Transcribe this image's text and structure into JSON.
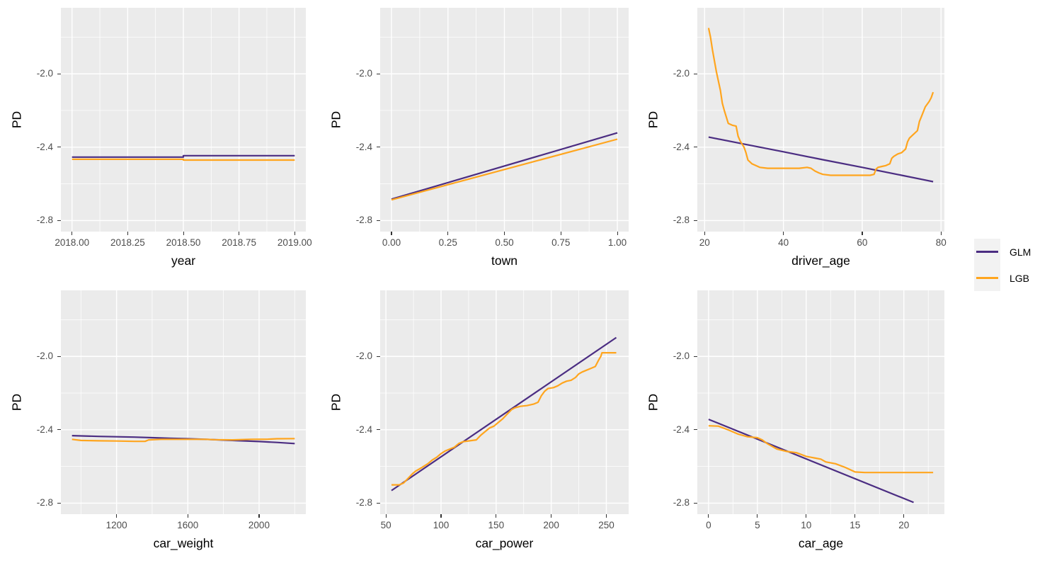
{
  "colors": {
    "glm": "#4B2D82",
    "lgb": "#FFA51E",
    "panel_background": "#EBEBEB",
    "grid_major": "#FFFFFF",
    "grid_minor": "#FFFFFF",
    "tick_mark": "#333333",
    "tick_label": "#4D4D4D",
    "axis_title": "#000000",
    "legend_key_background": "#F2F2F2",
    "figure_background": "#FFFFFF"
  },
  "y_axis": {
    "label": "PD",
    "ticks": [
      -2.0,
      -2.4,
      -2.8
    ],
    "tick_labels": [
      "-2.0",
      "-2.4",
      "-2.8"
    ],
    "minor_ticks": [
      -1.8,
      -2.2,
      -2.6
    ],
    "domain": [
      -2.86,
      -1.64
    ]
  },
  "legend": {
    "position": "right",
    "items": [
      {
        "label": "GLM",
        "color": "#4B2D82"
      },
      {
        "label": "LGB",
        "color": "#FFA51E"
      }
    ]
  },
  "chart_data": [
    {
      "type": "line",
      "id": "year",
      "xlabel": "year",
      "ylabel": "PD",
      "x_domain": [
        2017.95,
        2019.05
      ],
      "x_ticks": [
        2018.0,
        2018.25,
        2018.5,
        2018.75,
        2019.0
      ],
      "x_tick_labels": [
        "2018.00",
        "2018.25",
        "2018.50",
        "2018.75",
        "2019.00"
      ],
      "x_minor_ticks": [
        2018.125,
        2018.375,
        2018.625,
        2018.875
      ],
      "series": [
        {
          "name": "GLM",
          "color": "#4B2D82",
          "points": [
            [
              2018.0,
              -2.454
            ],
            [
              2018.5,
              -2.454
            ],
            [
              2018.5,
              -2.446
            ],
            [
              2019.0,
              -2.446
            ]
          ]
        },
        {
          "name": "LGB",
          "color": "#FFA51E",
          "points": [
            [
              2018.0,
              -2.466
            ],
            [
              2018.5,
              -2.466
            ],
            [
              2018.5,
              -2.47
            ],
            [
              2019.0,
              -2.47
            ]
          ]
        }
      ]
    },
    {
      "type": "line",
      "id": "town",
      "xlabel": "town",
      "ylabel": "PD",
      "x_domain": [
        -0.05,
        1.05
      ],
      "x_ticks": [
        0.0,
        0.25,
        0.5,
        0.75,
        1.0
      ],
      "x_tick_labels": [
        "0.00",
        "0.25",
        "0.50",
        "0.75",
        "1.00"
      ],
      "x_minor_ticks": [
        0.125,
        0.375,
        0.625,
        0.875
      ],
      "series": [
        {
          "name": "GLM",
          "color": "#4B2D82",
          "points": [
            [
              0,
              -2.683
            ],
            [
              1,
              -2.322
            ]
          ]
        },
        {
          "name": "LGB",
          "color": "#FFA51E",
          "points": [
            [
              0,
              -2.687
            ],
            [
              1,
              -2.356
            ]
          ]
        }
      ]
    },
    {
      "type": "line",
      "id": "driver_age",
      "xlabel": "driver_age",
      "ylabel": "PD",
      "x_domain": [
        18.15,
        80.85
      ],
      "x_ticks": [
        20,
        40,
        60,
        80
      ],
      "x_tick_labels": [
        "20",
        "40",
        "60",
        "80"
      ],
      "x_minor_ticks": [
        30,
        50,
        70
      ],
      "series": [
        {
          "name": "GLM",
          "color": "#4B2D82",
          "points": [
            [
              21,
              -2.345
            ],
            [
              30,
              -2.383
            ],
            [
              40,
              -2.425
            ],
            [
              50,
              -2.468
            ],
            [
              60,
              -2.51
            ],
            [
              70,
              -2.553
            ],
            [
              78,
              -2.588
            ]
          ]
        },
        {
          "name": "LGB",
          "color": "#FFA51E",
          "points": [
            [
              21,
              -1.75
            ],
            [
              21.5,
              -1.8
            ],
            [
              22,
              -1.87
            ],
            [
              23,
              -1.99
            ],
            [
              24,
              -2.09
            ],
            [
              24.5,
              -2.16
            ],
            [
              25,
              -2.2
            ],
            [
              26,
              -2.27
            ],
            [
              27,
              -2.28
            ],
            [
              28,
              -2.285
            ],
            [
              28.5,
              -2.34
            ],
            [
              29,
              -2.365
            ],
            [
              30,
              -2.4
            ],
            [
              30.5,
              -2.43
            ],
            [
              31,
              -2.47
            ],
            [
              32,
              -2.49
            ],
            [
              33,
              -2.5
            ],
            [
              34,
              -2.51
            ],
            [
              36,
              -2.515
            ],
            [
              44,
              -2.515
            ],
            [
              46,
              -2.51
            ],
            [
              47,
              -2.515
            ],
            [
              48,
              -2.53
            ],
            [
              49,
              -2.54
            ],
            [
              50,
              -2.548
            ],
            [
              52,
              -2.553
            ],
            [
              62,
              -2.553
            ],
            [
              63,
              -2.548
            ],
            [
              63.5,
              -2.52
            ],
            [
              64,
              -2.51
            ],
            [
              65,
              -2.505
            ],
            [
              66,
              -2.5
            ],
            [
              67,
              -2.49
            ],
            [
              67.5,
              -2.46
            ],
            [
              68,
              -2.45
            ],
            [
              69,
              -2.437
            ],
            [
              70,
              -2.43
            ],
            [
              71,
              -2.41
            ],
            [
              71.5,
              -2.37
            ],
            [
              72,
              -2.35
            ],
            [
              73,
              -2.33
            ],
            [
              74,
              -2.31
            ],
            [
              74.5,
              -2.26
            ],
            [
              75,
              -2.235
            ],
            [
              76,
              -2.18
            ],
            [
              77,
              -2.15
            ],
            [
              77.5,
              -2.13
            ],
            [
              78,
              -2.1
            ]
          ]
        }
      ]
    },
    {
      "type": "line",
      "id": "car_weight",
      "xlabel": "car_weight",
      "ylabel": "PD",
      "x_domain": [
        887.5,
        2262.5
      ],
      "x_ticks": [
        1200,
        1600,
        2000
      ],
      "x_tick_labels": [
        "1200",
        "1600",
        "2000"
      ],
      "x_minor_ticks": [
        1000,
        1400,
        1800,
        2200
      ],
      "series": [
        {
          "name": "GLM",
          "color": "#4B2D82",
          "points": [
            [
              950,
              -2.432
            ],
            [
              1100,
              -2.436
            ],
            [
              1200,
              -2.438
            ],
            [
              1300,
              -2.44
            ],
            [
              1400,
              -2.443
            ],
            [
              1500,
              -2.446
            ],
            [
              1600,
              -2.449
            ],
            [
              1700,
              -2.452
            ],
            [
              1800,
              -2.456
            ],
            [
              1900,
              -2.46
            ],
            [
              2000,
              -2.464
            ],
            [
              2100,
              -2.469
            ],
            [
              2200,
              -2.475
            ]
          ]
        },
        {
          "name": "LGB",
          "color": "#FFA51E",
          "points": [
            [
              950,
              -2.452
            ],
            [
              1000,
              -2.458
            ],
            [
              1100,
              -2.46
            ],
            [
              1200,
              -2.461
            ],
            [
              1300,
              -2.463
            ],
            [
              1360,
              -2.463
            ],
            [
              1380,
              -2.455
            ],
            [
              1450,
              -2.452
            ],
            [
              1700,
              -2.452
            ],
            [
              1750,
              -2.454
            ],
            [
              1850,
              -2.455
            ],
            [
              1950,
              -2.452
            ],
            [
              2050,
              -2.451
            ],
            [
              2100,
              -2.449
            ],
            [
              2200,
              -2.448
            ]
          ]
        }
      ]
    },
    {
      "type": "line",
      "id": "car_power",
      "xlabel": "car_power",
      "ylabel": "PD",
      "x_domain": [
        44.75,
        270.25
      ],
      "x_ticks": [
        50,
        100,
        150,
        200,
        250
      ],
      "x_tick_labels": [
        "50",
        "100",
        "150",
        "200",
        "250"
      ],
      "x_minor_ticks": [
        75,
        125,
        175,
        225
      ],
      "series": [
        {
          "name": "GLM",
          "color": "#4B2D82",
          "points": [
            [
              55,
              -2.731
            ],
            [
              259,
              -1.897
            ]
          ]
        },
        {
          "name": "LGB",
          "color": "#FFA51E",
          "points": [
            [
              55,
              -2.7
            ],
            [
              62,
              -2.7
            ],
            [
              66,
              -2.69
            ],
            [
              70,
              -2.665
            ],
            [
              74,
              -2.64
            ],
            [
              77,
              -2.625
            ],
            [
              80,
              -2.615
            ],
            [
              84,
              -2.6
            ],
            [
              88,
              -2.585
            ],
            [
              92,
              -2.565
            ],
            [
              96,
              -2.55
            ],
            [
              100,
              -2.53
            ],
            [
              104,
              -2.515
            ],
            [
              108,
              -2.505
            ],
            [
              112,
              -2.495
            ],
            [
              116,
              -2.475
            ],
            [
              120,
              -2.465
            ],
            [
              126,
              -2.46
            ],
            [
              132,
              -2.455
            ],
            [
              136,
              -2.43
            ],
            [
              140,
              -2.41
            ],
            [
              144,
              -2.39
            ],
            [
              148,
              -2.38
            ],
            [
              152,
              -2.36
            ],
            [
              156,
              -2.34
            ],
            [
              160,
              -2.315
            ],
            [
              164,
              -2.29
            ],
            [
              167,
              -2.28
            ],
            [
              172,
              -2.272
            ],
            [
              178,
              -2.268
            ],
            [
              184,
              -2.26
            ],
            [
              188,
              -2.25
            ],
            [
              191,
              -2.215
            ],
            [
              194,
              -2.19
            ],
            [
              197,
              -2.175
            ],
            [
              202,
              -2.17
            ],
            [
              206,
              -2.16
            ],
            [
              210,
              -2.145
            ],
            [
              214,
              -2.135
            ],
            [
              218,
              -2.13
            ],
            [
              222,
              -2.115
            ],
            [
              225,
              -2.095
            ],
            [
              228,
              -2.085
            ],
            [
              232,
              -2.075
            ],
            [
              236,
              -2.065
            ],
            [
              240,
              -2.055
            ],
            [
              243,
              -2.02
            ],
            [
              245,
              -2.0
            ],
            [
              246,
              -1.98
            ],
            [
              259,
              -1.98
            ]
          ]
        }
      ]
    },
    {
      "type": "line",
      "id": "car_age",
      "xlabel": "car_age",
      "ylabel": "PD",
      "x_domain": [
        -1.15,
        24.15
      ],
      "x_ticks": [
        0,
        5,
        10,
        15,
        20
      ],
      "x_tick_labels": [
        "0",
        "5",
        "10",
        "15",
        "20"
      ],
      "x_minor_ticks": [
        2.5,
        7.5,
        12.5,
        17.5,
        22.5
      ],
      "series": [
        {
          "name": "GLM",
          "color": "#4B2D82",
          "points": [
            [
              0,
              -2.343
            ],
            [
              21,
              -2.796
            ]
          ]
        },
        {
          "name": "LGB",
          "color": "#FFA51E",
          "points": [
            [
              0,
              -2.378
            ],
            [
              1,
              -2.38
            ],
            [
              2,
              -2.4
            ],
            [
              3,
              -2.423
            ],
            [
              4,
              -2.438
            ],
            [
              5,
              -2.443
            ],
            [
              5.5,
              -2.455
            ],
            [
              6,
              -2.475
            ],
            [
              7,
              -2.505
            ],
            [
              8,
              -2.518
            ],
            [
              9,
              -2.525
            ],
            [
              10,
              -2.545
            ],
            [
              11,
              -2.555
            ],
            [
              11.5,
              -2.56
            ],
            [
              12,
              -2.575
            ],
            [
              13,
              -2.585
            ],
            [
              14,
              -2.605
            ],
            [
              15,
              -2.63
            ],
            [
              16,
              -2.633
            ],
            [
              23,
              -2.633
            ]
          ]
        }
      ]
    }
  ]
}
